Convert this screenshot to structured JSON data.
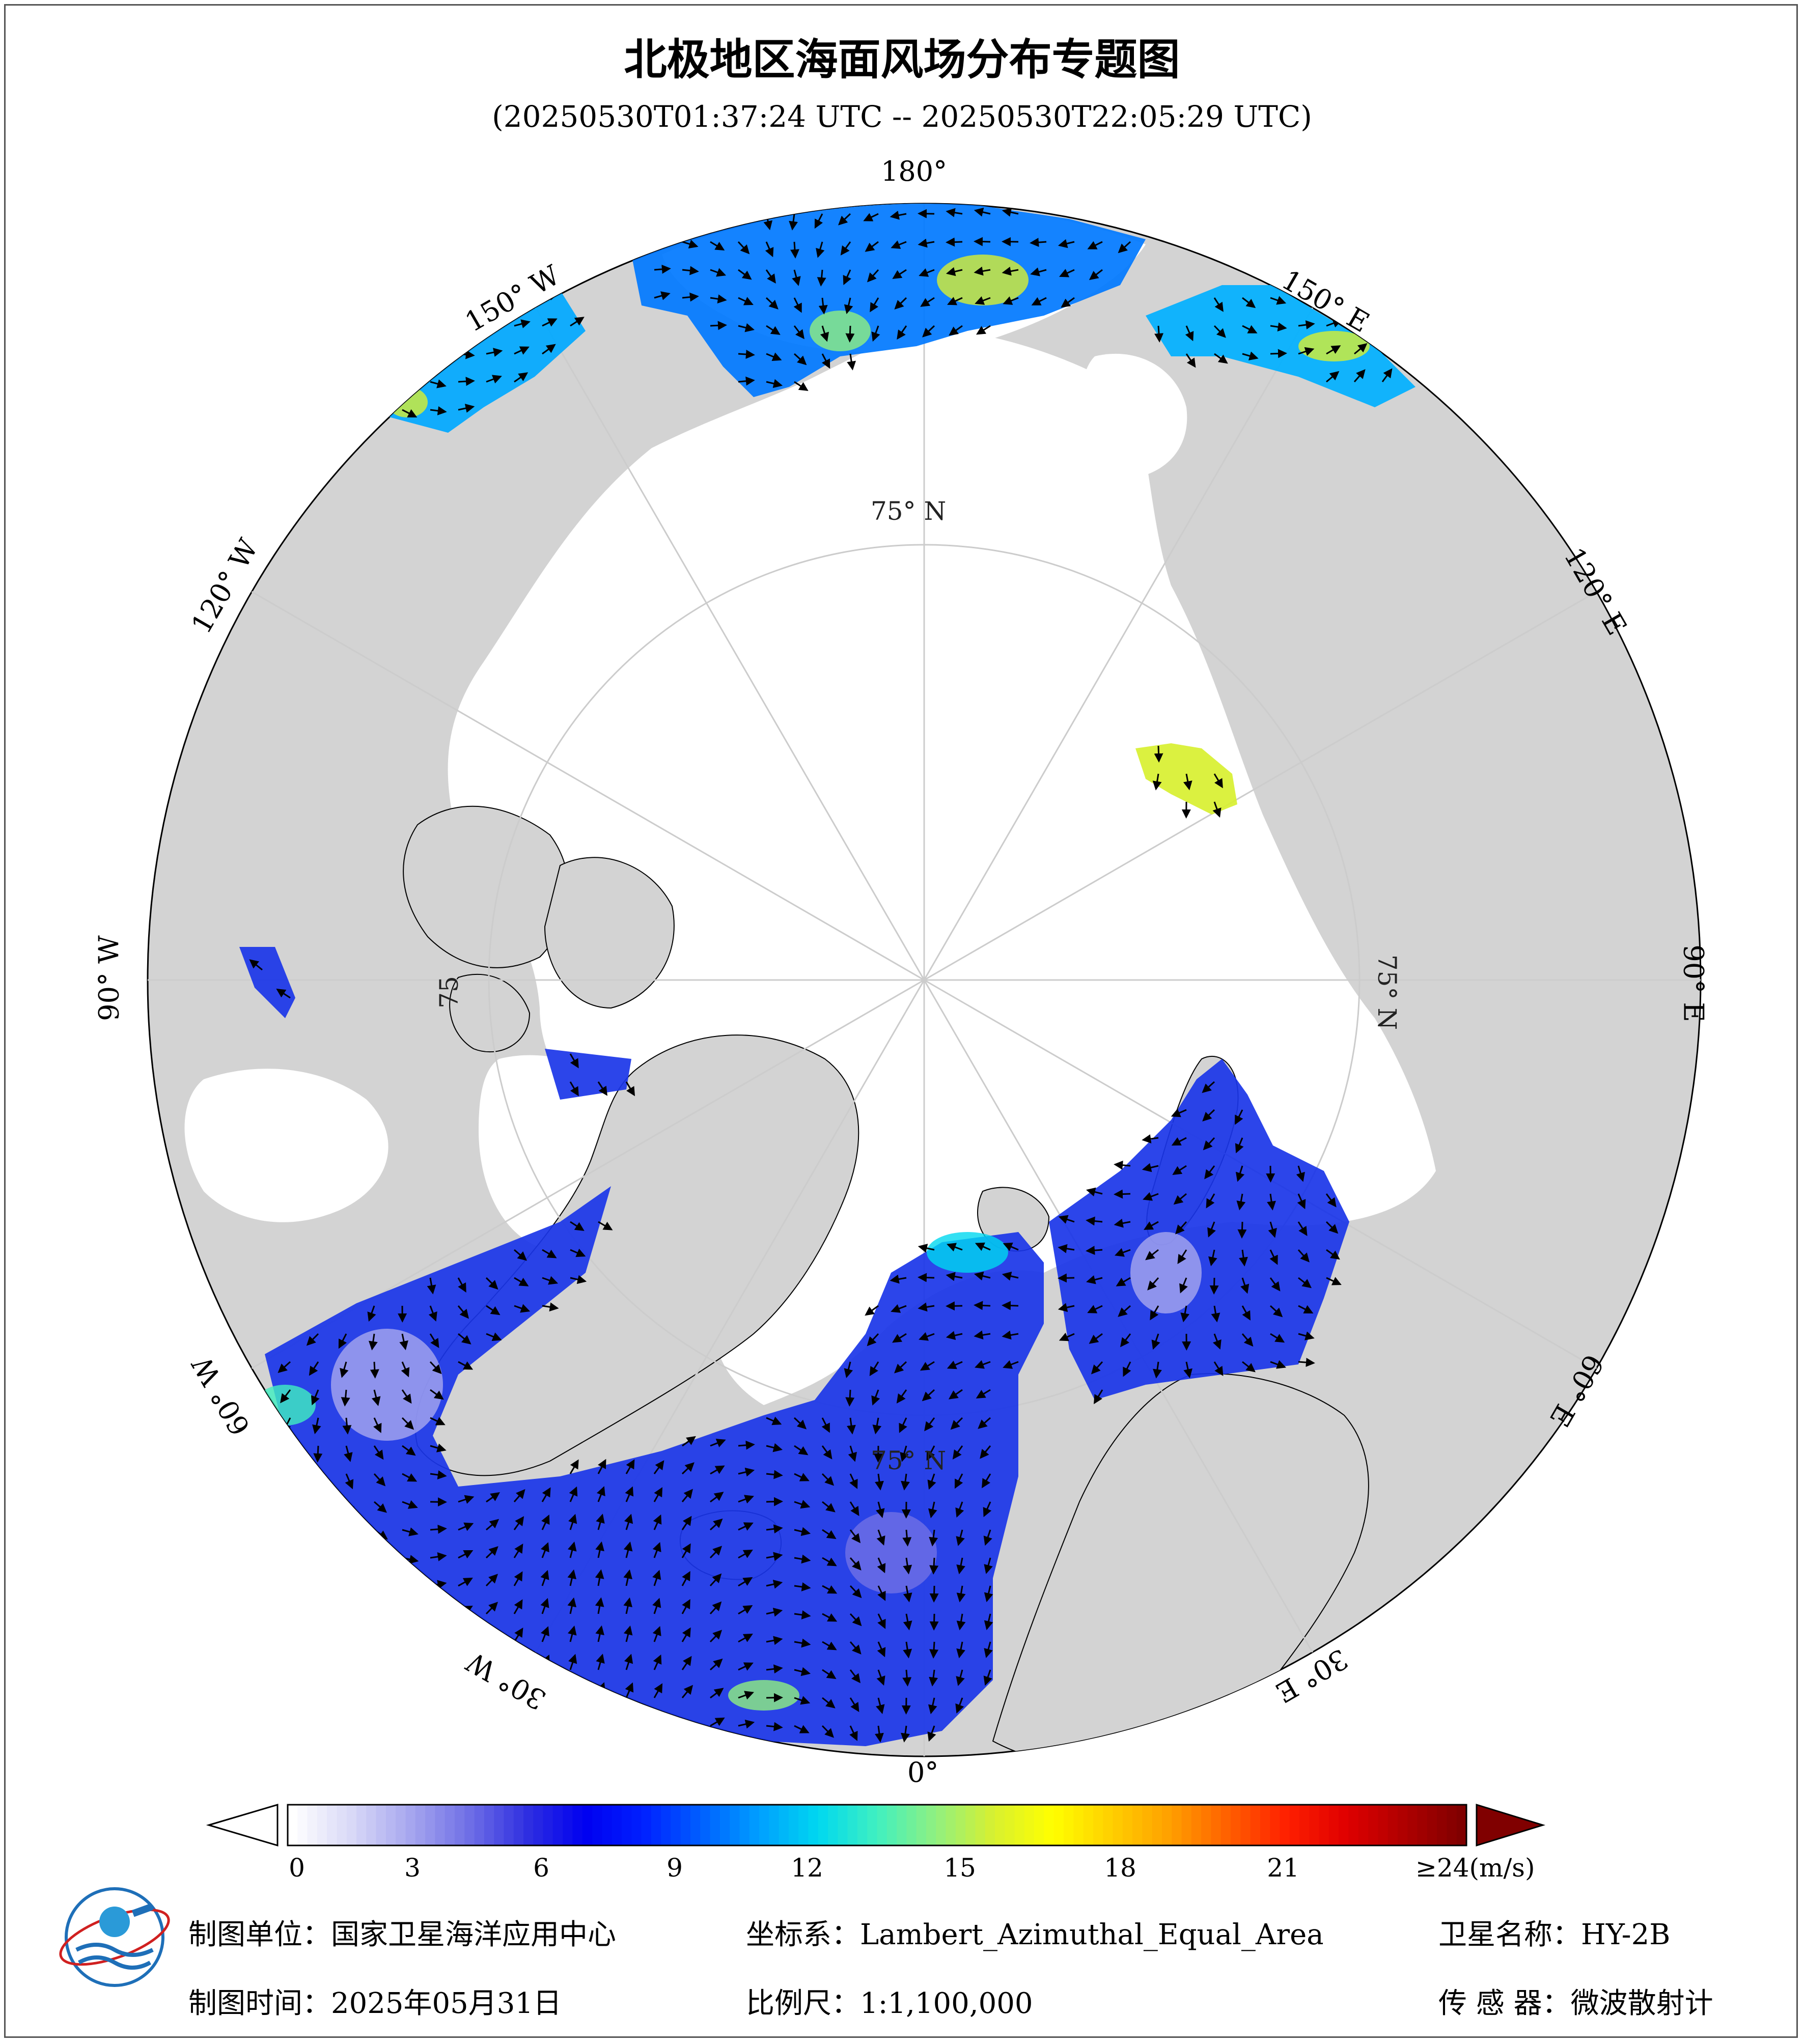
{
  "title": "北极地区海面风场分布专题图",
  "subtitle": "(20250530T01:37:24 UTC -- 20250530T22:05:29 UTC)",
  "lon_labels": {
    "n180": "180°",
    "w150": "150° W",
    "e150": "150° E",
    "w120": "120° W",
    "e120": "120° E",
    "w90": "90° W",
    "e90": "90° E",
    "w60": "60° W",
    "e60": "60° E",
    "w30": "30° W",
    "e30": "30° E",
    "s0": "0°"
  },
  "lat_labels": {
    "top": "75° N",
    "right": "75° N",
    "left": "75",
    "bottom": "75° N"
  },
  "colorbar": {
    "ticks": [
      "0",
      "3",
      "6",
      "9",
      "12",
      "15",
      "18",
      "21"
    ],
    "max_label": "≥24",
    "unit": "(m/s)",
    "range": [
      0,
      24
    ],
    "colors": [
      "#ffffff",
      "#d9d9f7",
      "#a7a7ef",
      "#7070e6",
      "#3030e0",
      "#0000f0",
      "#0020ff",
      "#0060ff",
      "#00a0ff",
      "#00d8f0",
      "#40f0c0",
      "#90f080",
      "#d8f030",
      "#ffff00",
      "#ffd000",
      "#ffa000",
      "#ff6000",
      "#ff2000",
      "#e00000",
      "#b00000",
      "#800000"
    ]
  },
  "footer": {
    "unit": "制图单位：国家卫星海洋应用中心",
    "coord": "坐标系：Lambert_Azimuthal_Equal_Area",
    "satellite": "卫星名称：HY-2B",
    "time": "制图时间：2025年05月31日",
    "scale": "比例尺：1:1,100,000",
    "sensor": "传 感 器：微波散射计"
  },
  "colors": {
    "land": "#d3d3d3",
    "ice": "#ffffff",
    "low_wind": "#1a2be0",
    "mid_wind": "#00b0ff",
    "high_wind": "#e8f040"
  }
}
